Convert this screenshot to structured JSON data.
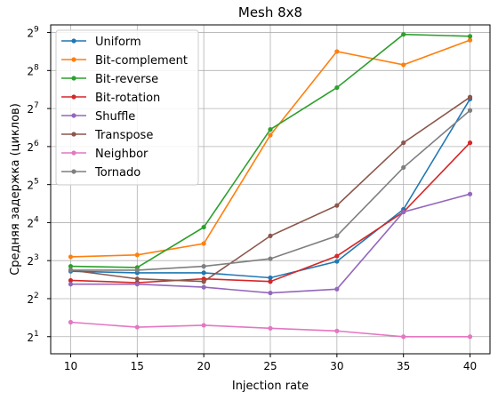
{
  "chart_data": {
    "type": "line",
    "title": "Mesh 8x8",
    "xlabel": "Injection rate",
    "ylabel": "Средняя задержка (циклов)",
    "x": [
      10,
      15,
      20,
      25,
      30,
      35,
      40
    ],
    "xlim": [
      8.5,
      41.5
    ],
    "y_scale": "log2",
    "ylim_log2": [
      0.55,
      9.2
    ],
    "y_ticks": [
      {
        "base": "2",
        "exp": "1",
        "log2": 1
      },
      {
        "base": "2",
        "exp": "2",
        "log2": 2
      },
      {
        "base": "2",
        "exp": "3",
        "log2": 3
      },
      {
        "base": "2",
        "exp": "4",
        "log2": 4
      },
      {
        "base": "2",
        "exp": "5",
        "log2": 5
      },
      {
        "base": "2",
        "exp": "6",
        "log2": 6
      },
      {
        "base": "2",
        "exp": "7",
        "log2": 7
      },
      {
        "base": "2",
        "exp": "8",
        "log2": 8
      },
      {
        "base": "2",
        "exp": "9",
        "log2": 9
      }
    ],
    "grid": true,
    "legend": "upper-left",
    "series": [
      {
        "name": "Uniform",
        "color": "#1f77b4",
        "log2_values": [
          2.72,
          2.68,
          2.68,
          2.55,
          2.98,
          4.35,
          7.25
        ]
      },
      {
        "name": "Bit-complement",
        "color": "#ff7f0e",
        "log2_values": [
          3.1,
          3.15,
          3.45,
          6.3,
          8.5,
          8.15,
          8.8
        ]
      },
      {
        "name": "Bit-reverse",
        "color": "#2ca02c",
        "log2_values": [
          2.85,
          2.82,
          3.88,
          6.45,
          7.55,
          8.95,
          8.9
        ]
      },
      {
        "name": "Bit-rotation",
        "color": "#d62728",
        "log2_values": [
          2.48,
          2.42,
          2.52,
          2.45,
          3.12,
          4.28,
          6.1
        ]
      },
      {
        "name": "Shuffle",
        "color": "#9467bd",
        "log2_values": [
          2.38,
          2.38,
          2.3,
          2.15,
          2.25,
          4.28,
          4.75
        ]
      },
      {
        "name": "Transpose",
        "color": "#8c564b",
        "log2_values": [
          2.75,
          2.52,
          2.45,
          3.65,
          4.45,
          6.1,
          7.3
        ]
      },
      {
        "name": "Neighbor",
        "color": "#e377c2",
        "log2_values": [
          1.38,
          1.25,
          1.3,
          1.22,
          1.15,
          1.0,
          1.0
        ]
      },
      {
        "name": "Tornado",
        "color": "#7f7f7f",
        "log2_values": [
          2.75,
          2.75,
          2.85,
          3.05,
          3.65,
          5.45,
          6.95
        ]
      }
    ]
  }
}
